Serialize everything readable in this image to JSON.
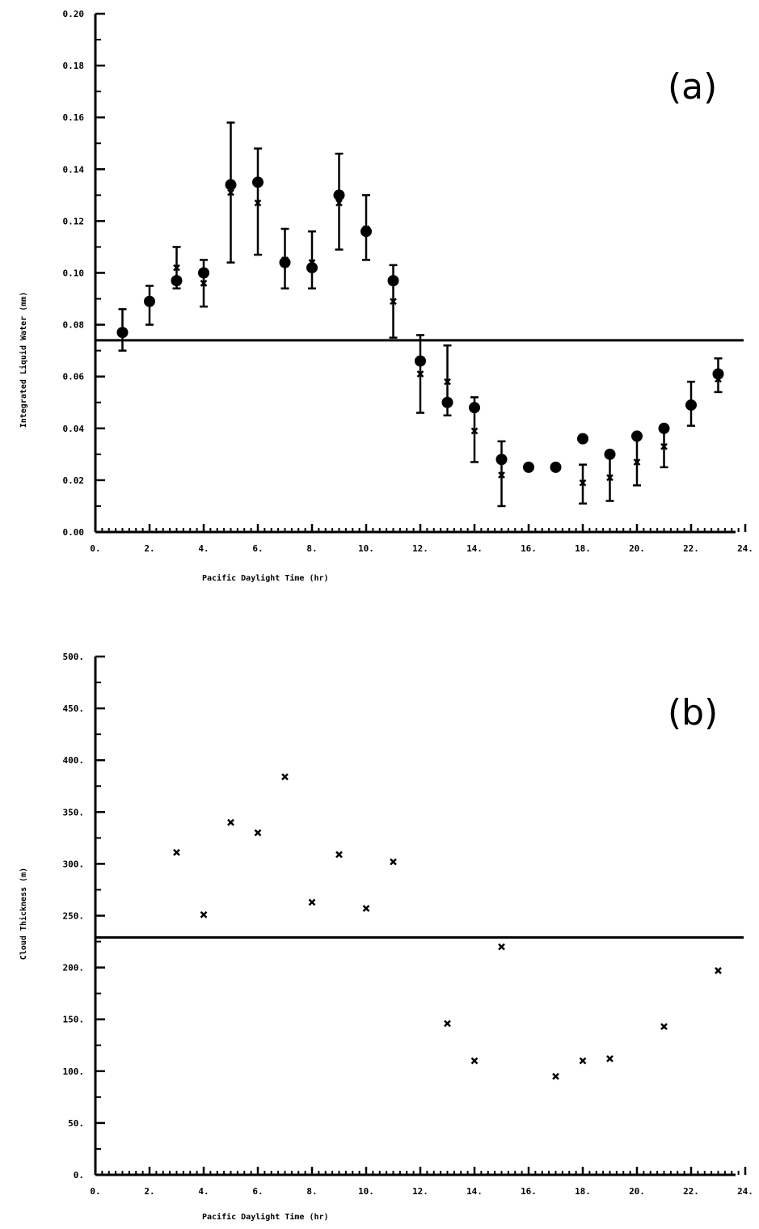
{
  "chart_data": [
    {
      "type": "scatter",
      "panel_label": "(a)",
      "xlabel": "Pacific Daylight Time  (hr)",
      "ylabel": "Integrated Liquid Water  (mm)",
      "xlim": [
        0,
        24
      ],
      "ylim": [
        0,
        0.2
      ],
      "x_ticks": [
        0,
        2,
        4,
        6,
        8,
        10,
        12,
        14,
        16,
        18,
        20,
        22,
        24
      ],
      "x_tick_labels": [
        "0.",
        "2.",
        "4.",
        "6.",
        "8.",
        "10.",
        "12.",
        "14.",
        "16.",
        "18.",
        "20.",
        "22.",
        "24."
      ],
      "y_ticks": [
        0,
        0.02,
        0.04,
        0.06,
        0.08,
        0.1,
        0.12,
        0.14,
        0.16,
        0.18,
        0.2
      ],
      "y_tick_labels": [
        "0.00",
        "0.02",
        "0.04",
        "0.06",
        "0.08",
        "0.10",
        "0.12",
        "0.14",
        "0.16",
        "0.18",
        "0.20"
      ],
      "reference_line": 0.074,
      "series": [
        {
          "marker": "circle",
          "points": [
            {
              "x": 1,
              "y": 0.077,
              "err_low": 0.07,
              "err_high": 0.086
            },
            {
              "x": 2,
              "y": 0.089,
              "err_low": 0.08,
              "err_high": 0.095
            },
            {
              "x": 3,
              "y": 0.097,
              "err_low": 0.094,
              "err_high": 0.11
            },
            {
              "x": 4,
              "y": 0.1,
              "err_low": 0.087,
              "err_high": 0.105
            },
            {
              "x": 5,
              "y": 0.134,
              "err_low": 0.104,
              "err_high": 0.158
            },
            {
              "x": 6,
              "y": 0.135,
              "err_low": 0.107,
              "err_high": 0.148
            },
            {
              "x": 7,
              "y": 0.104,
              "err_low": 0.094,
              "err_high": 0.117
            },
            {
              "x": 8,
              "y": 0.102,
              "err_low": 0.094,
              "err_high": 0.116
            },
            {
              "x": 9,
              "y": 0.13,
              "err_low": 0.109,
              "err_high": 0.146
            },
            {
              "x": 10,
              "y": 0.116,
              "err_low": 0.105,
              "err_high": 0.13
            },
            {
              "x": 11,
              "y": 0.097,
              "err_low": 0.075,
              "err_high": 0.103
            },
            {
              "x": 12,
              "y": 0.066,
              "err_low": 0.046,
              "err_high": 0.076
            },
            {
              "x": 13,
              "y": 0.05,
              "err_low": 0.045,
              "err_high": 0.072
            },
            {
              "x": 14,
              "y": 0.048,
              "err_low": 0.027,
              "err_high": 0.052
            },
            {
              "x": 15,
              "y": 0.028,
              "err_low": 0.01,
              "err_high": 0.035
            },
            {
              "x": 16,
              "y": 0.025
            },
            {
              "x": 17,
              "y": 0.025
            },
            {
              "x": 18,
              "y": 0.036,
              "err_low": 0.011,
              "err_high": 0.026
            },
            {
              "x": 19,
              "y": 0.03,
              "err_low": 0.012,
              "err_high": 0.03
            },
            {
              "x": 20,
              "y": 0.037,
              "err_low": 0.018,
              "err_high": 0.037
            },
            {
              "x": 21,
              "y": 0.04,
              "err_low": 0.025,
              "err_high": 0.04
            },
            {
              "x": 22,
              "y": 0.049,
              "err_low": 0.041,
              "err_high": 0.058
            },
            {
              "x": 23,
              "y": 0.061,
              "err_low": 0.054,
              "err_high": 0.067
            }
          ]
        },
        {
          "marker": "x",
          "points": [
            {
              "x": 3,
              "y": 0.102
            },
            {
              "x": 4,
              "y": 0.096
            },
            {
              "x": 5,
              "y": 0.131
            },
            {
              "x": 6,
              "y": 0.127
            },
            {
              "x": 7,
              "y": 0.105
            },
            {
              "x": 8,
              "y": 0.104
            },
            {
              "x": 9,
              "y": 0.127
            },
            {
              "x": 10,
              "y": 0.117
            },
            {
              "x": 11,
              "y": 0.089
            },
            {
              "x": 12,
              "y": 0.061
            },
            {
              "x": 13,
              "y": 0.058
            },
            {
              "x": 14,
              "y": 0.039
            },
            {
              "x": 15,
              "y": 0.022
            },
            {
              "x": 18,
              "y": 0.019
            },
            {
              "x": 19,
              "y": 0.021
            },
            {
              "x": 20,
              "y": 0.027
            },
            {
              "x": 21,
              "y": 0.033
            },
            {
              "x": 23,
              "y": 0.059
            }
          ]
        }
      ]
    },
    {
      "type": "scatter",
      "panel_label": "(b)",
      "xlabel": "Pacific Daylight Time  (hr)",
      "ylabel": "Cloud Thickness  (m)",
      "xlim": [
        0,
        24
      ],
      "ylim": [
        0,
        500
      ],
      "x_ticks": [
        0,
        2,
        4,
        6,
        8,
        10,
        12,
        14,
        16,
        18,
        20,
        22,
        24
      ],
      "x_tick_labels": [
        "0.",
        "2.",
        "4.",
        "6.",
        "8.",
        "10.",
        "12.",
        "14.",
        "16.",
        "18.",
        "20.",
        "22.",
        "24."
      ],
      "y_ticks": [
        0,
        50,
        100,
        150,
        200,
        250,
        300,
        350,
        400,
        450,
        500
      ],
      "y_tick_labels": [
        "0.",
        "50.",
        "100.",
        "150.",
        "200.",
        "250.",
        "300.",
        "350.",
        "400.",
        "450.",
        "500."
      ],
      "reference_line": 229,
      "series": [
        {
          "marker": "x",
          "points": [
            {
              "x": 3,
              "y": 311
            },
            {
              "x": 4,
              "y": 251
            },
            {
              "x": 5,
              "y": 340
            },
            {
              "x": 6,
              "y": 330
            },
            {
              "x": 7,
              "y": 384
            },
            {
              "x": 8,
              "y": 263
            },
            {
              "x": 9,
              "y": 309
            },
            {
              "x": 10,
              "y": 257
            },
            {
              "x": 11,
              "y": 302
            },
            {
              "x": 13,
              "y": 146
            },
            {
              "x": 14,
              "y": 110
            },
            {
              "x": 15,
              "y": 220
            },
            {
              "x": 17,
              "y": 95
            },
            {
              "x": 18,
              "y": 110
            },
            {
              "x": 19,
              "y": 112
            },
            {
              "x": 21,
              "y": 143
            },
            {
              "x": 23,
              "y": 197
            }
          ]
        }
      ]
    }
  ]
}
